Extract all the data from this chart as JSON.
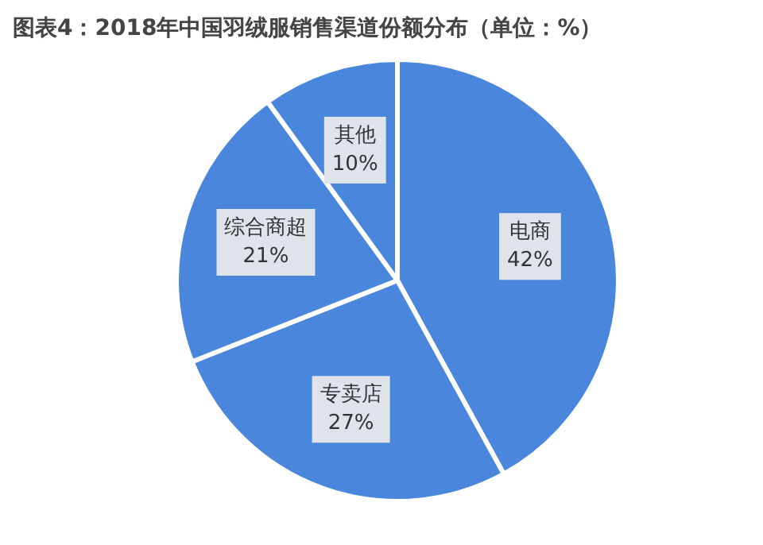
{
  "chart_data": {
    "type": "pie",
    "title": "图表4：2018年中国羽绒服销售渠道份额分布（单位：%）",
    "categories": [
      "电商",
      "专卖店",
      "综合商超",
      "其他"
    ],
    "values": [
      42,
      27,
      21,
      10
    ],
    "value_labels": [
      "42%",
      "27%",
      "21%",
      "10%"
    ],
    "colors": [
      "#4a87dc",
      "#4a87dc",
      "#4a87dc",
      "#4a87dc"
    ],
    "legend": false
  }
}
